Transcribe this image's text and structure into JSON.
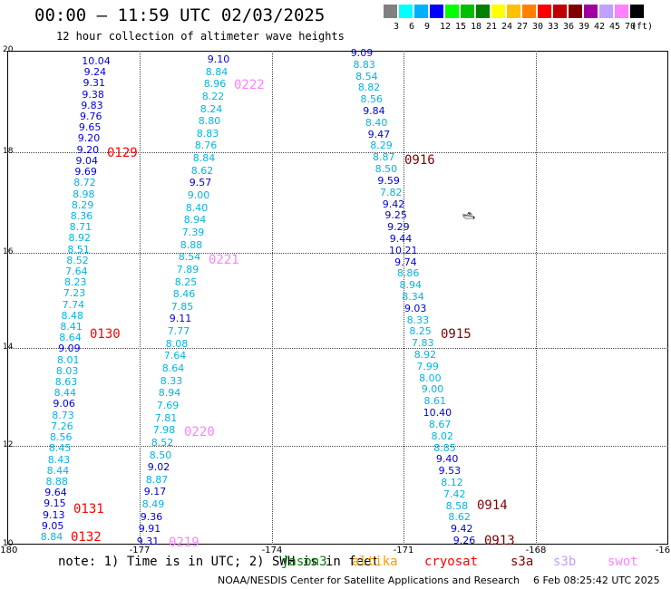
{
  "title": "00:00 – 11:59 UTC 02/03/2025",
  "subtitle": "12 hour collection of altimeter wave heights",
  "legend": {
    "unit": "(ft)",
    "bins": [
      {
        "label": "3",
        "color": "#808080"
      },
      {
        "label": "6",
        "color": "#00ffff"
      },
      {
        "label": "9",
        "color": "#00b0ff"
      },
      {
        "label": "12",
        "color": "#0000ff"
      },
      {
        "label": "15",
        "color": "#00ff00"
      },
      {
        "label": "18",
        "color": "#00c000"
      },
      {
        "label": "21",
        "color": "#008000"
      },
      {
        "label": "24",
        "color": "#ffff00"
      },
      {
        "label": "27",
        "color": "#ffc000"
      },
      {
        "label": "30",
        "color": "#ff8000"
      },
      {
        "label": "33",
        "color": "#ff0000"
      },
      {
        "label": "36",
        "color": "#c00000"
      },
      {
        "label": "39",
        "color": "#800000"
      },
      {
        "label": "42",
        "color": "#a000a0"
      },
      {
        "label": "45",
        "color": "#c0a0ff"
      },
      {
        "label": "70",
        "color": "#ff80ff"
      },
      {
        "label": "",
        "color": "#000000"
      }
    ]
  },
  "axes": {
    "lon_min": -180,
    "lon_max": -165,
    "lat_min": 10,
    "lat_max": 20,
    "x_ticks": [
      "-180",
      "-177",
      "-174",
      "-171",
      "-168",
      "-16"
    ],
    "y_ticks": [
      "20",
      "18",
      "16",
      "14",
      "12",
      "10"
    ]
  },
  "tracks": [
    {
      "id": "t1",
      "values": [
        [
          "10.04",
          "b"
        ],
        [
          "9.24",
          "b"
        ],
        [
          "9.31",
          "b"
        ],
        [
          "9.38",
          "b"
        ],
        [
          "9.83",
          "b"
        ],
        [
          "9.76",
          "b"
        ],
        [
          "9.65",
          "b"
        ],
        [
          "9.20",
          "b"
        ],
        [
          "9.20",
          "b"
        ],
        [
          "9.04",
          "b"
        ],
        [
          "9.69",
          "b"
        ],
        [
          "8.72",
          "c"
        ],
        [
          "8.98",
          "c"
        ],
        [
          "8.29",
          "c"
        ],
        [
          "8.36",
          "c"
        ],
        [
          "8.71",
          "c"
        ],
        [
          "8.92",
          "c"
        ],
        [
          "8.51",
          "c"
        ],
        [
          "8.52",
          "c"
        ],
        [
          "7.64",
          "c"
        ],
        [
          "8.23",
          "c"
        ],
        [
          "7.23",
          "c"
        ],
        [
          "7.74",
          "c"
        ],
        [
          "8.48",
          "c"
        ],
        [
          "8.41",
          "c"
        ],
        [
          "8.64",
          "c"
        ],
        [
          "9.09",
          "b"
        ],
        [
          "8.01",
          "c"
        ],
        [
          "8.03",
          "c"
        ],
        [
          "8.63",
          "c"
        ],
        [
          "8.44",
          "c"
        ],
        [
          "9.06",
          "b"
        ],
        [
          "8.73",
          "c"
        ],
        [
          "7.26",
          "c"
        ],
        [
          "8.56",
          "c"
        ],
        [
          "8.45",
          "c"
        ],
        [
          "8.43",
          "c"
        ],
        [
          "8.44",
          "c"
        ],
        [
          "8.88",
          "c"
        ],
        [
          "9.64",
          "b"
        ],
        [
          "9.15",
          "b"
        ],
        [
          "9.13",
          "b"
        ],
        [
          "9.05",
          "b"
        ],
        [
          "8.84",
          "c"
        ]
      ]
    },
    {
      "id": "t2",
      "values": [
        [
          "9.10",
          "b"
        ],
        [
          "8.84",
          "c"
        ],
        [
          "8.96",
          "c"
        ],
        [
          "8.22",
          "c"
        ],
        [
          "8.24",
          "c"
        ],
        [
          "8.80",
          "c"
        ],
        [
          "8.83",
          "c"
        ],
        [
          "8.76",
          "c"
        ],
        [
          "8.84",
          "c"
        ],
        [
          "8.62",
          "c"
        ],
        [
          "9.57",
          "b"
        ],
        [
          "9.00",
          "c"
        ],
        [
          "8.40",
          "c"
        ],
        [
          "8.94",
          "c"
        ],
        [
          "7.39",
          "c"
        ],
        [
          "8.88",
          "c"
        ],
        [
          "8.54",
          "c"
        ],
        [
          "7.89",
          "c"
        ],
        [
          "8.25",
          "c"
        ],
        [
          "8.46",
          "c"
        ],
        [
          "7.85",
          "c"
        ],
        [
          "9.11",
          "b"
        ],
        [
          "7.77",
          "c"
        ],
        [
          "8.08",
          "c"
        ],
        [
          "7.64",
          "c"
        ],
        [
          "8.64",
          "c"
        ],
        [
          "8.33",
          "c"
        ],
        [
          "8.94",
          "c"
        ],
        [
          "7.69",
          "c"
        ],
        [
          "7.81",
          "c"
        ],
        [
          "7.98",
          "c"
        ],
        [
          "8.52",
          "c"
        ],
        [
          "8.50",
          "c"
        ],
        [
          "9.02",
          "b"
        ],
        [
          "8.87",
          "c"
        ],
        [
          "9.17",
          "b"
        ],
        [
          "8.49",
          "c"
        ],
        [
          "9.36",
          "b"
        ],
        [
          "9.91",
          "b"
        ],
        [
          "9.31",
          "b"
        ]
      ]
    },
    {
      "id": "t3",
      "values": [
        [
          "9.09",
          "b"
        ],
        [
          "8.83",
          "c"
        ],
        [
          "8.54",
          "c"
        ],
        [
          "8.82",
          "c"
        ],
        [
          "8.56",
          "c"
        ],
        [
          "9.84",
          "b"
        ],
        [
          "8.40",
          "c"
        ],
        [
          "9.47",
          "b"
        ],
        [
          "8.29",
          "c"
        ],
        [
          "8.87",
          "c"
        ],
        [
          "8.50",
          "c"
        ],
        [
          "9.59",
          "b"
        ],
        [
          "7.82",
          "c"
        ],
        [
          "9.42",
          "b"
        ],
        [
          "9.25",
          "b"
        ],
        [
          "9.29",
          "b"
        ],
        [
          "9.44",
          "b"
        ],
        [
          "10.21",
          "b"
        ],
        [
          "9.74",
          "b"
        ],
        [
          "8.86",
          "c"
        ],
        [
          "8.94",
          "c"
        ],
        [
          "8.34",
          "c"
        ],
        [
          "9.03",
          "b"
        ],
        [
          "8.33",
          "c"
        ],
        [
          "8.25",
          "c"
        ],
        [
          "7.83",
          "c"
        ],
        [
          "8.92",
          "c"
        ],
        [
          "7.99",
          "c"
        ],
        [
          "8.00",
          "c"
        ],
        [
          "9.00",
          "c"
        ],
        [
          "8.61",
          "c"
        ],
        [
          "10.40",
          "b"
        ],
        [
          "8.67",
          "c"
        ],
        [
          "8.02",
          "c"
        ],
        [
          "8.85",
          "c"
        ],
        [
          "9.40",
          "b"
        ],
        [
          "9.53",
          "b"
        ],
        [
          "8.12",
          "c"
        ],
        [
          "7.42",
          "c"
        ],
        [
          "8.58",
          "c"
        ],
        [
          "8.62",
          "c"
        ],
        [
          "9.42",
          "b"
        ],
        [
          "9.26",
          "b"
        ]
      ]
    }
  ],
  "pass_labels": [
    {
      "text": "0129",
      "color": "#ff0000"
    },
    {
      "text": "0130",
      "color": "#ff0000"
    },
    {
      "text": "0131",
      "color": "#ff0000"
    },
    {
      "text": "0132",
      "color": "#ff0000"
    },
    {
      "text": "0222",
      "color": "#ff80ff"
    },
    {
      "text": "0221",
      "color": "#ff80ff"
    },
    {
      "text": "0220",
      "color": "#ff80ff"
    },
    {
      "text": "0219",
      "color": "#ff80ff"
    },
    {
      "text": "0916",
      "color": "#800000"
    },
    {
      "text": "0915",
      "color": "#800000"
    },
    {
      "text": "0914",
      "color": "#800000"
    },
    {
      "text": "0913",
      "color": "#800000"
    }
  ],
  "note": "note: 1) Time is in UTC; 2) SWH is in feet",
  "satellites": [
    {
      "name": "jason3",
      "color": "#008000"
    },
    {
      "name": "altika",
      "color": "#ff9900"
    },
    {
      "name": "cryosat",
      "color": "#ff0000"
    },
    {
      "name": "s3a",
      "color": "#800000"
    },
    {
      "name": "s3b",
      "color": "#c0a0ff"
    },
    {
      "name": "swot",
      "color": "#ff80ff"
    }
  ],
  "credit": "NOAA/NESDIS Center for Satellite Applications and Research",
  "timestamp": "6 Feb 08:25:42 UTC 2025",
  "colors": {
    "blue_values": "#0000d8",
    "cyan_values": "#00b4e6"
  }
}
